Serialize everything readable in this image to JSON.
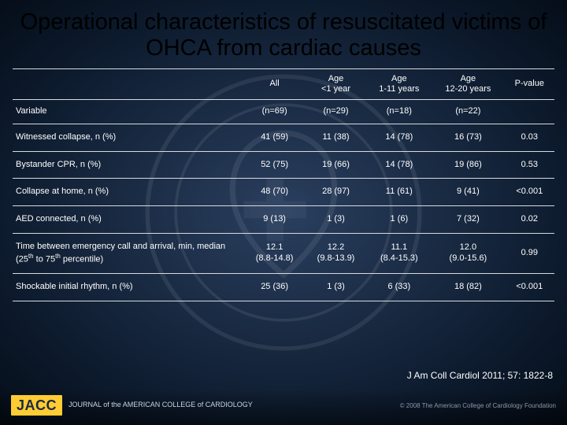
{
  "title": "Operational characteristics of resuscitated victims of OHCA from cardiac causes",
  "columns": [
    "",
    "All",
    "Age\n<1 year",
    "Age\n1-11 years",
    "Age\n12-20 years",
    "P-value"
  ],
  "variable_row": [
    "Variable",
    "(n=69)",
    "(n=29)",
    "(n=18)",
    "(n=22)",
    ""
  ],
  "rows": [
    {
      "label": "Witnessed collapse, n (%)",
      "cells": [
        "41 (59)",
        "11 (38)",
        "14 (78)",
        "16 (73)",
        "0.03"
      ]
    },
    {
      "label": "Bystander CPR, n (%)",
      "cells": [
        "52 (75)",
        "19 (66)",
        "14 (78)",
        "19 (86)",
        "0.53"
      ]
    },
    {
      "label": "Collapse at home, n (%)",
      "cells": [
        "48 (70)",
        "28 (97)",
        "11 (61)",
        "9 (41)",
        "<0.001"
      ]
    },
    {
      "label": "AED connected, n (%)",
      "cells": [
        "9 (13)",
        "1 (3)",
        "1 (6)",
        "7 (32)",
        "0.02"
      ]
    },
    {
      "label_html": "Time between emergency call and arrival, min, median (25<span class=\"sup\">th</span> to 75<span class=\"sup\">th</span> percentile)",
      "cells": [
        "12.1\n(8.8-14.8)",
        "12.2\n(9.8-13.9)",
        "11.1\n(8.4-15.3)",
        "12.0\n(9.0-15.6)",
        "0.99"
      ]
    },
    {
      "label": "Shockable initial rhythm, n (%)",
      "cells": [
        "25 (36)",
        "1 (3)",
        "6 (33)",
        "18 (82)",
        "<0.001"
      ]
    }
  ],
  "citation": "J Am Coll Cardiol 2011; 57: 1822-8",
  "logo": {
    "abbr": "JACC",
    "line1": "JOURNAL of the AMERICAN COLLEGE of CARDIOLOGY"
  },
  "copyright": "© 2008 The American College of Cardiology Foundation",
  "colors": {
    "title": "#000000",
    "text": "#ffffff",
    "rule": "#d7dbe0",
    "accent": "#ffcc33"
  }
}
